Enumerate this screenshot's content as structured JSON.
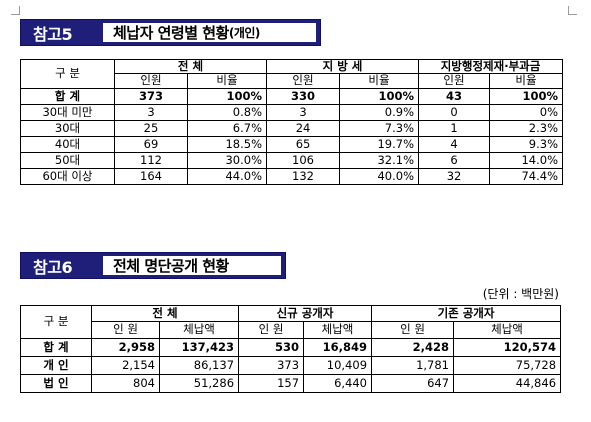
{
  "ref5": {
    "tag": "참고5",
    "title": "체납자 연령별 현황",
    "title_sub": "(개인)",
    "header": {
      "group_label": "구   분",
      "groups": [
        "전 체",
        "지 방 세",
        "지방행정제재·부과금"
      ],
      "sub": [
        "인원",
        "비율",
        "인원",
        "비율",
        "인원",
        "비율"
      ]
    },
    "rows": [
      {
        "label": "합   계",
        "values": [
          "373",
          "100%",
          "330",
          "100%",
          "43",
          "100%"
        ]
      },
      {
        "label": "30대 미만",
        "values": [
          "3",
          "0.8%",
          "3",
          "0.9%",
          "0",
          "0%"
        ]
      },
      {
        "label": "30대",
        "values": [
          "25",
          "6.7%",
          "24",
          "7.3%",
          "1",
          "2.3%"
        ]
      },
      {
        "label": "40대",
        "values": [
          "69",
          "18.5%",
          "65",
          "19.7%",
          "4",
          "9.3%"
        ]
      },
      {
        "label": "50대",
        "values": [
          "112",
          "30.0%",
          "106",
          "32.1%",
          "6",
          "14.0%"
        ]
      },
      {
        "label": "60대 이상",
        "values": [
          "164",
          "44.0%",
          "132",
          "40.0%",
          "32",
          "74.4%"
        ]
      }
    ]
  },
  "ref6": {
    "tag": "참고6",
    "title": "전체 명단공개 현황",
    "unit": "(단위 : 백만원)",
    "header": {
      "group_label": "구   분",
      "groups": [
        "전          체",
        "신규 공개자",
        "기존 공개자"
      ],
      "sub": [
        "인 원",
        "체납액",
        "인 원",
        "체납액",
        "인 원",
        "체납액"
      ]
    },
    "rows": [
      {
        "label": "합   계",
        "values": [
          "2,958",
          "137,423",
          "530",
          "16,849",
          "2,428",
          "120,574"
        ]
      },
      {
        "label": "개   인",
        "values": [
          "2,154",
          "86,137",
          "373",
          "10,409",
          "1,781",
          "75,728"
        ]
      },
      {
        "label": "법   인",
        "values": [
          "804",
          "51,286",
          "157",
          "6,440",
          "647",
          "44,846"
        ]
      }
    ]
  }
}
